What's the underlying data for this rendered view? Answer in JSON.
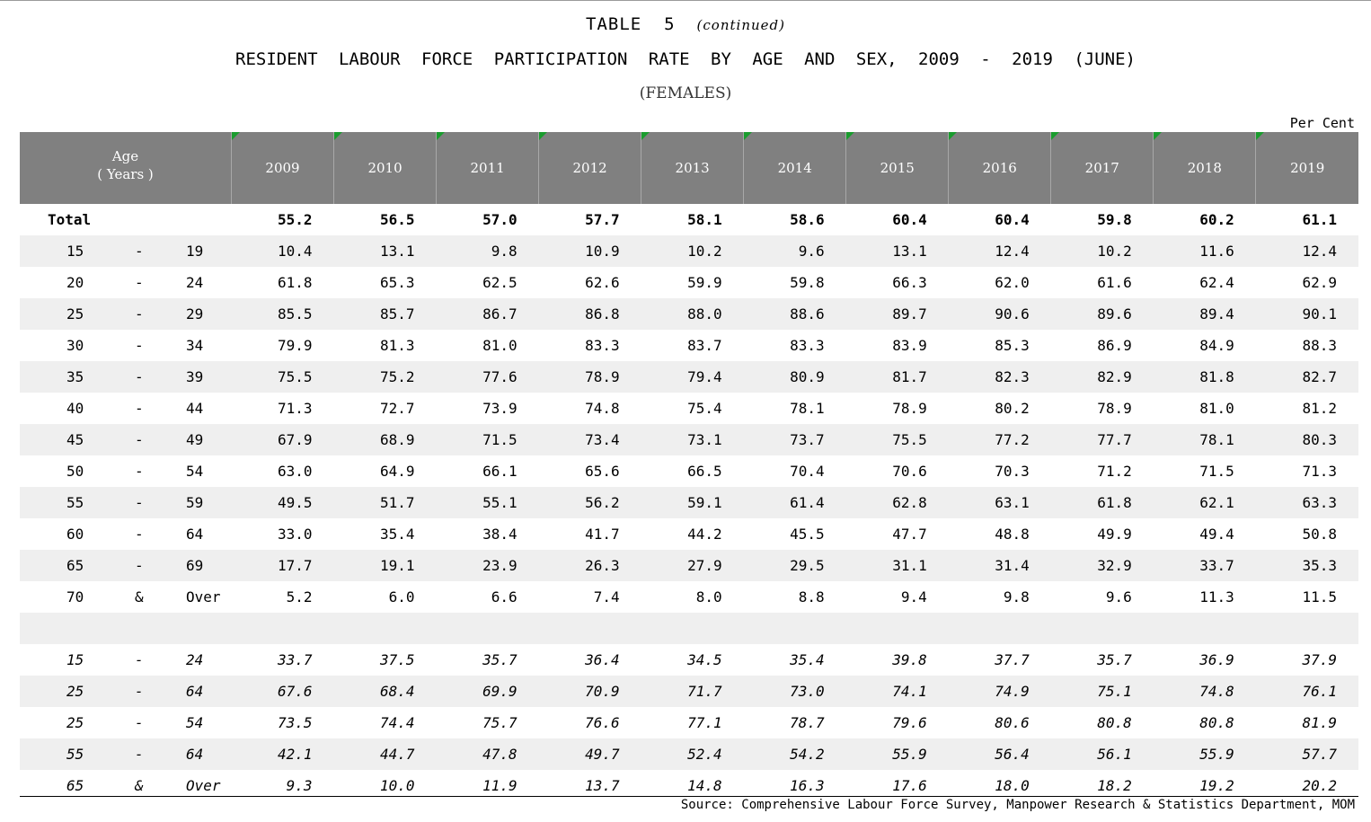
{
  "title": {
    "table_label": "TABLE  5",
    "continued": "(continued)",
    "main": "RESIDENT LABOUR FORCE PARTICIPATION RATE BY AGE AND SEX, 2009 - 2019 (JUNE)",
    "subtitle": "(FEMALES)",
    "unit": "Per Cent"
  },
  "header": {
    "age_line1": "Age",
    "age_line2": "( Years )",
    "years": [
      "2009",
      "2010",
      "2011",
      "2012",
      "2013",
      "2014",
      "2015",
      "2016",
      "2017",
      "2018",
      "2019"
    ]
  },
  "rows": [
    {
      "a": "Total",
      "s": "",
      "b": "",
      "style": "total",
      "values": [
        "55.2",
        "56.5",
        "57.0",
        "57.7",
        "58.1",
        "58.6",
        "60.4",
        "60.4",
        "59.8",
        "60.2",
        "61.1"
      ]
    },
    {
      "a": "15",
      "s": "-",
      "b": "19",
      "style": "",
      "values": [
        "10.4",
        "13.1",
        "9.8",
        "10.9",
        "10.2",
        "9.6",
        "13.1",
        "12.4",
        "10.2",
        "11.6",
        "12.4"
      ]
    },
    {
      "a": "20",
      "s": "-",
      "b": "24",
      "style": "",
      "values": [
        "61.8",
        "65.3",
        "62.5",
        "62.6",
        "59.9",
        "59.8",
        "66.3",
        "62.0",
        "61.6",
        "62.4",
        "62.9"
      ]
    },
    {
      "a": "25",
      "s": "-",
      "b": "29",
      "style": "",
      "values": [
        "85.5",
        "85.7",
        "86.7",
        "86.8",
        "88.0",
        "88.6",
        "89.7",
        "90.6",
        "89.6",
        "89.4",
        "90.1"
      ]
    },
    {
      "a": "30",
      "s": "-",
      "b": "34",
      "style": "",
      "values": [
        "79.9",
        "81.3",
        "81.0",
        "83.3",
        "83.7",
        "83.3",
        "83.9",
        "85.3",
        "86.9",
        "84.9",
        "88.3"
      ]
    },
    {
      "a": "35",
      "s": "-",
      "b": "39",
      "style": "",
      "values": [
        "75.5",
        "75.2",
        "77.6",
        "78.9",
        "79.4",
        "80.9",
        "81.7",
        "82.3",
        "82.9",
        "81.8",
        "82.7"
      ]
    },
    {
      "a": "40",
      "s": "-",
      "b": "44",
      "style": "",
      "values": [
        "71.3",
        "72.7",
        "73.9",
        "74.8",
        "75.4",
        "78.1",
        "78.9",
        "80.2",
        "78.9",
        "81.0",
        "81.2"
      ]
    },
    {
      "a": "45",
      "s": "-",
      "b": "49",
      "style": "",
      "values": [
        "67.9",
        "68.9",
        "71.5",
        "73.4",
        "73.1",
        "73.7",
        "75.5",
        "77.2",
        "77.7",
        "78.1",
        "80.3"
      ]
    },
    {
      "a": "50",
      "s": "-",
      "b": "54",
      "style": "",
      "values": [
        "63.0",
        "64.9",
        "66.1",
        "65.6",
        "66.5",
        "70.4",
        "70.6",
        "70.3",
        "71.2",
        "71.5",
        "71.3"
      ]
    },
    {
      "a": "55",
      "s": "-",
      "b": "59",
      "style": "",
      "values": [
        "49.5",
        "51.7",
        "55.1",
        "56.2",
        "59.1",
        "61.4",
        "62.8",
        "63.1",
        "61.8",
        "62.1",
        "63.3"
      ]
    },
    {
      "a": "60",
      "s": "-",
      "b": "64",
      "style": "",
      "values": [
        "33.0",
        "35.4",
        "38.4",
        "41.7",
        "44.2",
        "45.5",
        "47.7",
        "48.8",
        "49.9",
        "49.4",
        "50.8"
      ]
    },
    {
      "a": "65",
      "s": "-",
      "b": "69",
      "style": "",
      "values": [
        "17.7",
        "19.1",
        "23.9",
        "26.3",
        "27.9",
        "29.5",
        "31.1",
        "31.4",
        "32.9",
        "33.7",
        "35.3"
      ]
    },
    {
      "a": "70",
      "s": "&",
      "b": "Over",
      "style": "",
      "values": [
        "5.2",
        "6.0",
        "6.6",
        "7.4",
        "8.0",
        "8.8",
        "9.4",
        "9.8",
        "9.6",
        "11.3",
        "11.5"
      ]
    },
    {
      "a": "",
      "s": "",
      "b": "",
      "style": "blank",
      "values": [
        "",
        "",
        "",
        "",
        "",
        "",
        "",
        "",
        "",
        "",
        ""
      ]
    },
    {
      "a": "15",
      "s": "-",
      "b": "24",
      "style": "ital",
      "values": [
        "33.7",
        "37.5",
        "35.7",
        "36.4",
        "34.5",
        "35.4",
        "39.8",
        "37.7",
        "35.7",
        "36.9",
        "37.9"
      ]
    },
    {
      "a": "25",
      "s": "-",
      "b": "64",
      "style": "ital",
      "values": [
        "67.6",
        "68.4",
        "69.9",
        "70.9",
        "71.7",
        "73.0",
        "74.1",
        "74.9",
        "75.1",
        "74.8",
        "76.1"
      ]
    },
    {
      "a": "25",
      "s": "-",
      "b": "54",
      "style": "ital",
      "values": [
        "73.5",
        "74.4",
        "75.7",
        "76.6",
        "77.1",
        "78.7",
        "79.6",
        "80.6",
        "80.8",
        "80.8",
        "81.9"
      ]
    },
    {
      "a": "55",
      "s": "-",
      "b": "64",
      "style": "ital",
      "values": [
        "42.1",
        "44.7",
        "47.8",
        "49.7",
        "52.4",
        "54.2",
        "55.9",
        "56.4",
        "56.1",
        "55.9",
        "57.7"
      ]
    },
    {
      "a": "65",
      "s": "&",
      "b": "Over",
      "style": "ital",
      "values": [
        "9.3",
        "10.0",
        "11.9",
        "13.7",
        "14.8",
        "16.3",
        "17.6",
        "18.0",
        "18.2",
        "19.2",
        "20.2"
      ]
    }
  ],
  "source": "Source:  Comprehensive Labour Force Survey, Manpower Research & Statistics Department, MOM"
}
